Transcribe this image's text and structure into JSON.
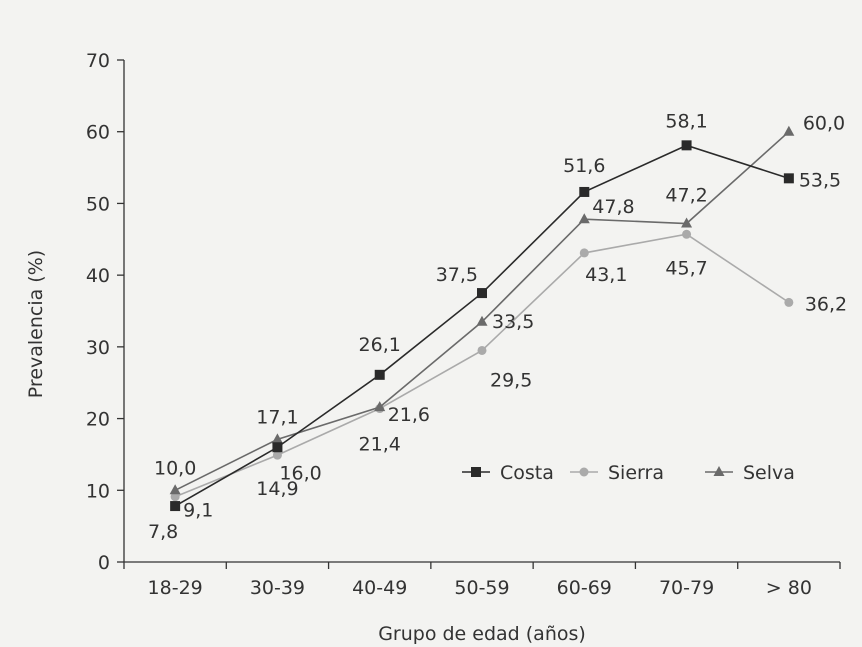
{
  "chart_data": {
    "type": "line",
    "title": "",
    "xlabel": "Grupo de edad (años)",
    "ylabel": "Prevalencia (%)",
    "categories": [
      "18-29",
      "30-39",
      "40-49",
      "50-59",
      "60-69",
      "70-79",
      "> 80"
    ],
    "ylim": [
      0,
      70
    ],
    "yticks": [
      0,
      10,
      20,
      30,
      40,
      50,
      60,
      70
    ],
    "grid": false,
    "legend_position": "right",
    "series": [
      {
        "name": "Costa",
        "marker": "square",
        "color": "#2a2a2a",
        "values": [
          7.8,
          16.0,
          26.1,
          37.5,
          51.6,
          58.1,
          53.5
        ],
        "labels": [
          "7,8",
          "16,0",
          "26,1",
          "37,5",
          "51,6",
          "58,1",
          "53,5"
        ]
      },
      {
        "name": "Sierra",
        "marker": "circle",
        "color": "#aaaaaa",
        "values": [
          9.1,
          14.9,
          21.4,
          29.5,
          43.1,
          45.7,
          36.2
        ],
        "labels": [
          "9,1",
          "14,9",
          "21,4",
          "29,5",
          "43,1",
          "45,7",
          "36,2"
        ]
      },
      {
        "name": "Selva",
        "marker": "triangle",
        "color": "#6a6a6a",
        "values": [
          10.0,
          17.1,
          21.6,
          33.5,
          47.8,
          47.2,
          60.0
        ],
        "labels": [
          "10,0",
          "17,1",
          "21,6",
          "33,5",
          "47,8",
          "47,2",
          "60,0"
        ]
      }
    ]
  }
}
